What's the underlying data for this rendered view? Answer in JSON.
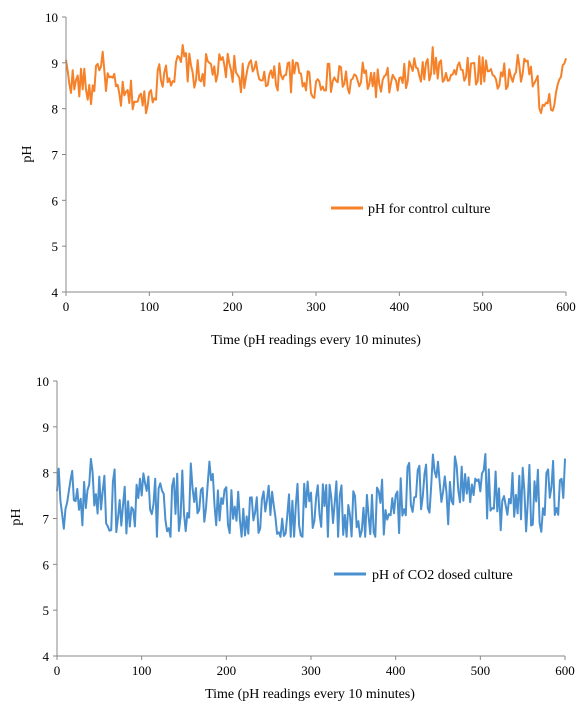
{
  "chart_data": [
    {
      "type": "line",
      "xlabel": "Time (pH readings every 10 minutes)",
      "ylabel": "pH",
      "xlim": [
        0,
        600
      ],
      "ylim": [
        4,
        10
      ],
      "xticks": [
        "0",
        "100",
        "200",
        "300",
        "400",
        "500",
        "600"
      ],
      "yticks": [
        "4",
        "5",
        "6",
        "7",
        "8",
        "9",
        "10"
      ],
      "grid": false,
      "legend_position": "center-right",
      "series": [
        {
          "name": "pH for control culture",
          "color": "#F5822A",
          "x": [
            0,
            10,
            20,
            30,
            40,
            50,
            60,
            70,
            80,
            90,
            100,
            110,
            120,
            130,
            140,
            150,
            160,
            170,
            180,
            190,
            200,
            210,
            220,
            230,
            240,
            250,
            260,
            270,
            280,
            290,
            300,
            310,
            320,
            330,
            340,
            350,
            360,
            370,
            380,
            390,
            400,
            410,
            420,
            430,
            440,
            450,
            460,
            470,
            480,
            490,
            500,
            510,
            520,
            530,
            540,
            550,
            560,
            570,
            580,
            590,
            600
          ],
          "y": [
            8.9,
            8.5,
            8.6,
            8.3,
            9.1,
            8.6,
            8.4,
            8.2,
            8.3,
            8.1,
            8.3,
            8.6,
            8.9,
            8.7,
            9.1,
            8.8,
            8.7,
            8.9,
            8.8,
            8.9,
            8.9,
            8.7,
            8.8,
            8.7,
            8.8,
            8.6,
            8.9,
            8.7,
            8.8,
            8.6,
            8.5,
            8.7,
            8.6,
            8.7,
            8.5,
            8.6,
            8.7,
            8.6,
            8.5,
            8.6,
            8.4,
            8.8,
            8.9,
            8.7,
            9.0,
            8.9,
            8.8,
            8.8,
            8.9,
            8.8,
            8.9,
            8.8,
            8.7,
            8.6,
            8.9,
            8.8,
            8.8,
            8.1,
            8.0,
            8.6,
            9.3
          ],
          "y_min": 7.7,
          "y_max": 9.8
        }
      ]
    },
    {
      "type": "line",
      "xlabel": "Time (pH readings every 10 minutes)",
      "ylabel": "pH",
      "xlim": [
        0,
        600
      ],
      "ylim": [
        4,
        10
      ],
      "xticks": [
        "0",
        "100",
        "200",
        "300",
        "400",
        "500",
        "600"
      ],
      "yticks": [
        "4",
        "5",
        "6",
        "7",
        "8",
        "9",
        "10"
      ],
      "grid": false,
      "legend_position": "center-right",
      "series": [
        {
          "name": "pH of CO2 dosed culture",
          "color": "#4A90CF",
          "x": [
            0,
            10,
            20,
            30,
            40,
            50,
            60,
            70,
            80,
            90,
            100,
            110,
            120,
            130,
            140,
            150,
            160,
            170,
            180,
            190,
            200,
            210,
            220,
            230,
            240,
            250,
            260,
            270,
            280,
            290,
            300,
            310,
            320,
            330,
            340,
            350,
            360,
            370,
            380,
            390,
            400,
            410,
            420,
            430,
            440,
            450,
            460,
            470,
            480,
            490,
            500,
            510,
            520,
            530,
            540,
            550,
            560,
            570,
            580,
            590,
            600
          ],
          "y": [
            7.6,
            7.2,
            7.5,
            7.0,
            7.8,
            7.6,
            7.3,
            7.4,
            7.2,
            7.0,
            7.3,
            7.5,
            7.0,
            7.3,
            7.2,
            7.4,
            7.6,
            7.1,
            7.5,
            7.0,
            7.1,
            7.0,
            6.9,
            7.2,
            7.1,
            7.3,
            7.0,
            7.1,
            7.0,
            7.2,
            7.0,
            7.1,
            7.0,
            7.2,
            6.9,
            7.1,
            7.0,
            7.1,
            7.2,
            7.0,
            7.4,
            7.3,
            7.6,
            7.8,
            7.7,
            7.9,
            7.5,
            7.8,
            7.6,
            7.4,
            7.9,
            7.7,
            7.4,
            7.2,
            7.6,
            7.5,
            7.4,
            7.3,
            7.5,
            7.6,
            7.9
          ],
          "y_min": 6.6,
          "y_max": 8.75
        }
      ]
    }
  ]
}
